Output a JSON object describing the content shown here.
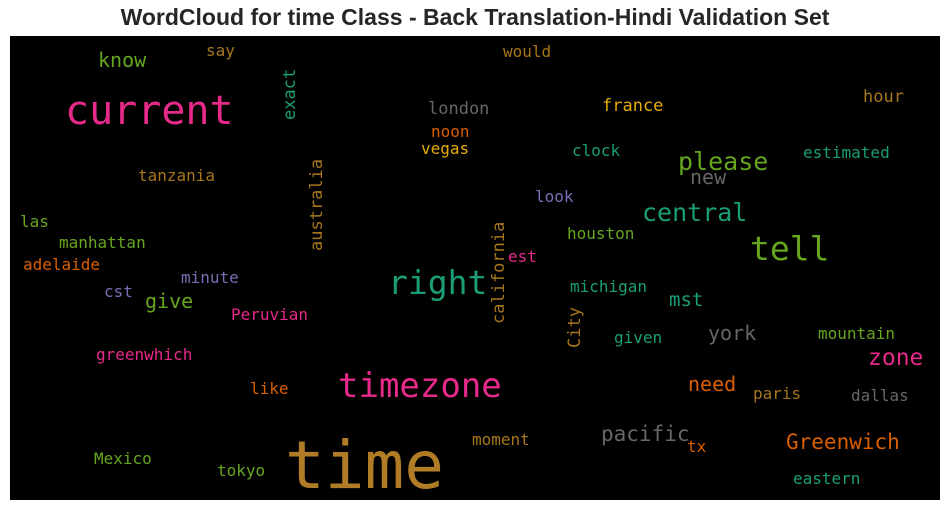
{
  "chart_data": {
    "type": "wordcloud",
    "title": "WordCloud for time Class - Back Translation-Hindi Validation Set",
    "background": "#000000",
    "words": [
      {
        "text": "time",
        "color": "#b07c25"
      },
      {
        "text": "current",
        "color": "#e7298a"
      },
      {
        "text": "timezone",
        "color": "#e7298a"
      },
      {
        "text": "right",
        "color": "#1b9e77"
      },
      {
        "text": "tell",
        "color": "#66a61e"
      },
      {
        "text": "please",
        "color": "#66a61e"
      },
      {
        "text": "central",
        "color": "#1b9e77"
      },
      {
        "text": "zone",
        "color": "#e7298a"
      },
      {
        "text": "Greenwich",
        "color": "#d95f02"
      },
      {
        "text": "pacific",
        "color": "#666666"
      },
      {
        "text": "new",
        "color": "#666666"
      },
      {
        "text": "york",
        "color": "#666666"
      },
      {
        "text": "need",
        "color": "#d95f02"
      },
      {
        "text": "know",
        "color": "#66a61e"
      },
      {
        "text": "give",
        "color": "#66a61e"
      },
      {
        "text": "mst",
        "color": "#1b9e77"
      },
      {
        "text": "exact",
        "color": "#1b9e77"
      },
      {
        "text": "australia",
        "color": "#a6761d"
      },
      {
        "text": "california",
        "color": "#a6761d"
      },
      {
        "text": "City",
        "color": "#a6761d"
      },
      {
        "text": "london",
        "color": "#666666"
      },
      {
        "text": "france",
        "color": "#e6ab02"
      },
      {
        "text": "hour",
        "color": "#a6761d"
      },
      {
        "text": "noon",
        "color": "#d95f02"
      },
      {
        "text": "vegas",
        "color": "#e6ab02"
      },
      {
        "text": "clock",
        "color": "#1b9e77"
      },
      {
        "text": "estimated",
        "color": "#1b9e77"
      },
      {
        "text": "tanzania",
        "color": "#a6761d"
      },
      {
        "text": "look",
        "color": "#7570b3"
      },
      {
        "text": "las",
        "color": "#66a61e"
      },
      {
        "text": "manhattan",
        "color": "#66a61e"
      },
      {
        "text": "houston",
        "color": "#66a61e"
      },
      {
        "text": "adelaide",
        "color": "#d95f02"
      },
      {
        "text": "est",
        "color": "#e7298a"
      },
      {
        "text": "minute",
        "color": "#7570b3"
      },
      {
        "text": "cst",
        "color": "#7570b3"
      },
      {
        "text": "michigan",
        "color": "#1b9e77"
      },
      {
        "text": "Peruvian",
        "color": "#e7298a"
      },
      {
        "text": "mountain",
        "color": "#66a61e"
      },
      {
        "text": "given",
        "color": "#1b9e77"
      },
      {
        "text": "greenwhich",
        "color": "#e7298a"
      },
      {
        "text": "like",
        "color": "#d95f02"
      },
      {
        "text": "paris",
        "color": "#a6761d"
      },
      {
        "text": "dallas",
        "color": "#666666"
      },
      {
        "text": "moment",
        "color": "#a6761d"
      },
      {
        "text": "tx",
        "color": "#d95f02"
      },
      {
        "text": "Mexico",
        "color": "#66a61e"
      },
      {
        "text": "tokyo",
        "color": "#66a61e"
      },
      {
        "text": "eastern",
        "color": "#1b9e77"
      },
      {
        "text": "say",
        "color": "#a6761d"
      },
      {
        "text": "would",
        "color": "#a6761d"
      }
    ]
  }
}
